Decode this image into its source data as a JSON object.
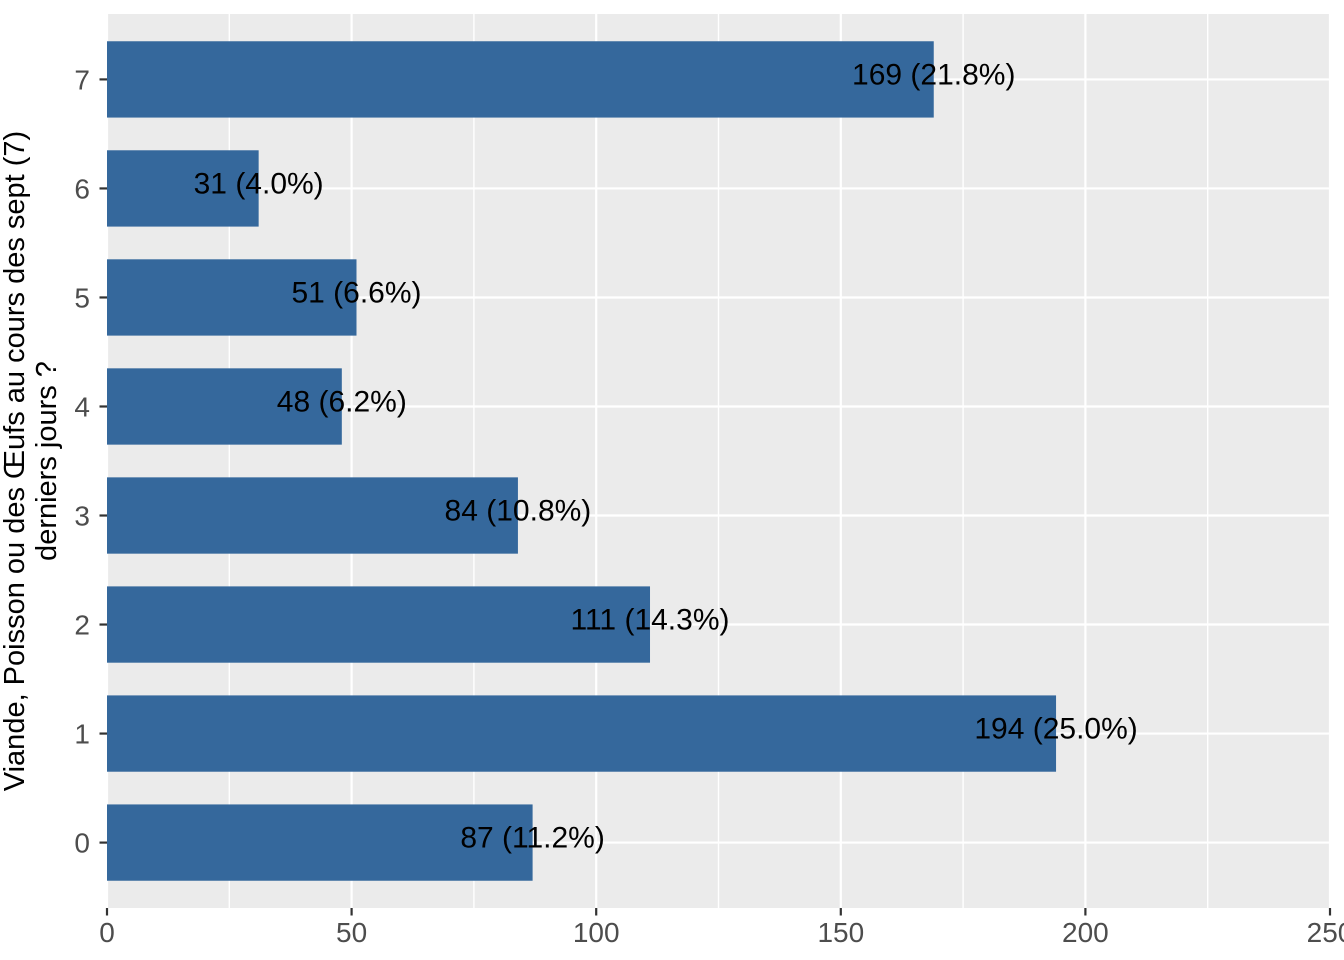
{
  "chart_data": {
    "type": "bar",
    "orientation": "horizontal",
    "title": "",
    "xlabel": "",
    "ylabel_lines": [
      "Viande, Poisson ou des Œufs au cours des sept (7)",
      "derniers jours ?"
    ],
    "categories": [
      "7",
      "6",
      "5",
      "4",
      "3",
      "2",
      "1",
      "0"
    ],
    "values": [
      169,
      31,
      51,
      48,
      84,
      111,
      194,
      87
    ],
    "percentages": [
      21.8,
      4.0,
      6.6,
      6.2,
      10.8,
      14.3,
      25.0,
      11.2
    ],
    "bar_labels": [
      "169 (21.8%)",
      "31 (4.0%)",
      "51 (6.6%)",
      "48 (6.2%)",
      "84 (10.8%)",
      "111 (14.3%)",
      "194 (25.0%)",
      "87 (11.2%)"
    ],
    "xlim": [
      0,
      250
    ],
    "x_major_ticks": [
      0,
      50,
      100,
      150,
      200,
      250
    ],
    "x_minor_ticks": [
      25,
      75,
      125,
      175,
      225
    ],
    "x_tick_labels": [
      "0",
      "50",
      "100",
      "150",
      "200",
      "250"
    ],
    "grid": true,
    "legend": false,
    "colors": {
      "bar_fill": "#35689C",
      "panel_background": "#EBEBEB",
      "grid_major": "#FFFFFF",
      "grid_minor": "#FFFFFF",
      "tick_mark": "#333333",
      "tick_label": "#4D4D4D",
      "bar_label": "#000000",
      "axis_title": "#000000",
      "figure_background": "#FFFFFF"
    }
  }
}
